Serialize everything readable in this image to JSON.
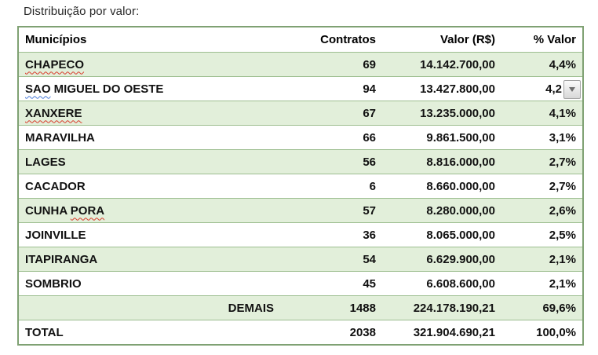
{
  "title": "Distribuição por valor:",
  "colors": {
    "row_shade_green": "#e2efda",
    "table_border_outer": "#7fa173",
    "table_border_inner": "#9dbe90",
    "spellcheck_red": "#d93a2b",
    "grammar_blue": "#4a7bd8"
  },
  "icons": {
    "dropdown": "down-triangle-icon"
  },
  "table": {
    "headers": {
      "municipio": "Municípios",
      "contratos": "Contratos",
      "valor": "Valor (R$)",
      "pct": "% Valor"
    },
    "rows": [
      {
        "name_parts": [
          {
            "t": "CHAPECO",
            "mark": "red"
          }
        ],
        "contratos": "69",
        "valor": "14.142.700,00",
        "pct": "4,4%",
        "shaded": true
      },
      {
        "name_parts": [
          {
            "t": "SAO",
            "mark": "blue"
          },
          {
            "t": " MIGUEL DO OESTE",
            "mark": "none"
          }
        ],
        "contratos": "94",
        "valor": "13.427.800,00",
        "pct": "4,2",
        "dropdown": true,
        "shaded": false
      },
      {
        "name_parts": [
          {
            "t": "XANXERE",
            "mark": "red"
          }
        ],
        "contratos": "67",
        "valor": "13.235.000,00",
        "pct": "4,1%",
        "shaded": true
      },
      {
        "name_parts": [
          {
            "t": "MARAVILHA",
            "mark": "none"
          }
        ],
        "contratos": "66",
        "valor": "9.861.500,00",
        "pct": "3,1%",
        "shaded": false
      },
      {
        "name_parts": [
          {
            "t": "LAGES",
            "mark": "none"
          }
        ],
        "contratos": "56",
        "valor": "8.816.000,00",
        "pct": "2,7%",
        "shaded": true
      },
      {
        "name_parts": [
          {
            "t": "CACADOR",
            "mark": "none"
          }
        ],
        "contratos": "6",
        "valor": "8.660.000,00",
        "pct": "2,7%",
        "shaded": false
      },
      {
        "name_parts": [
          {
            "t": "CUNHA ",
            "mark": "none"
          },
          {
            "t": "PORA",
            "mark": "red"
          }
        ],
        "contratos": "57",
        "valor": "8.280.000,00",
        "pct": "2,6%",
        "shaded": true
      },
      {
        "name_parts": [
          {
            "t": "JOINVILLE",
            "mark": "none"
          }
        ],
        "contratos": "36",
        "valor": "8.065.000,00",
        "pct": "2,5%",
        "shaded": false
      },
      {
        "name_parts": [
          {
            "t": "ITAPIRANGA",
            "mark": "none"
          }
        ],
        "contratos": "54",
        "valor": "6.629.900,00",
        "pct": "2,1%",
        "shaded": true
      },
      {
        "name_parts": [
          {
            "t": "SOMBRIO",
            "mark": "none"
          }
        ],
        "contratos": "45",
        "valor": "6.608.600,00",
        "pct": "2,1%",
        "shaded": false
      },
      {
        "name_parts": [
          {
            "t": "DEMAIS",
            "mark": "none"
          }
        ],
        "contratos": "1488",
        "valor": "224.178.190,21",
        "pct": "69,6%",
        "shaded": true,
        "align": "right"
      },
      {
        "name_parts": [
          {
            "t": "TOTAL",
            "mark": "none"
          }
        ],
        "contratos": "2038",
        "valor": "321.904.690,21",
        "pct": "100,0%",
        "shaded": false
      }
    ]
  }
}
